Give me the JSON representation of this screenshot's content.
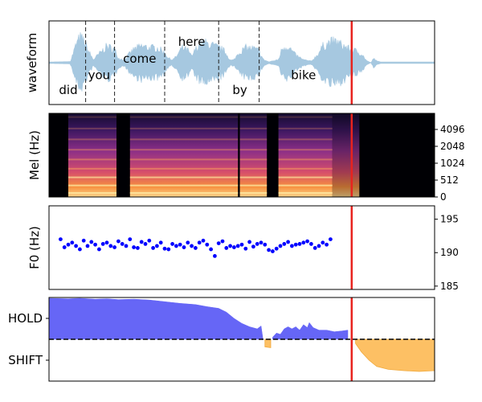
{
  "chart_data": [
    {
      "type": "area",
      "panel": "waveform",
      "ylabel": "waveform",
      "xlim": [
        0,
        10
      ],
      "ylim": [
        -1,
        1
      ],
      "color": "#a6c8e0",
      "envelope": [
        [
          0.0,
          0.02
        ],
        [
          0.55,
          0.03
        ],
        [
          0.7,
          0.6
        ],
        [
          0.8,
          0.85
        ],
        [
          0.9,
          0.75
        ],
        [
          1.0,
          0.45
        ],
        [
          1.15,
          0.1
        ],
        [
          1.3,
          0.3
        ],
        [
          1.5,
          0.55
        ],
        [
          1.7,
          0.45
        ],
        [
          1.8,
          0.15
        ],
        [
          1.95,
          0.1
        ],
        [
          2.05,
          0.25
        ],
        [
          2.2,
          0.45
        ],
        [
          2.4,
          0.55
        ],
        [
          2.6,
          0.5
        ],
        [
          2.8,
          0.5
        ],
        [
          3.0,
          0.35
        ],
        [
          3.1,
          0.15
        ],
        [
          3.2,
          0.1
        ],
        [
          3.3,
          0.2
        ],
        [
          3.45,
          0.5
        ],
        [
          3.6,
          0.42
        ],
        [
          3.7,
          0.2
        ],
        [
          3.8,
          0.45
        ],
        [
          3.9,
          0.6
        ],
        [
          4.0,
          0.68
        ],
        [
          4.2,
          0.6
        ],
        [
          4.4,
          0.5
        ],
        [
          4.5,
          0.45
        ],
        [
          4.6,
          0.3
        ],
        [
          4.7,
          0.08
        ],
        [
          4.8,
          0.1
        ],
        [
          4.9,
          0.3
        ],
        [
          5.1,
          0.5
        ],
        [
          5.3,
          0.48
        ],
        [
          5.45,
          0.4
        ],
        [
          5.55,
          0.12
        ],
        [
          5.7,
          0.02
        ],
        [
          5.95,
          0.1
        ],
        [
          6.05,
          0.5
        ],
        [
          6.2,
          0.55
        ],
        [
          6.4,
          0.25
        ],
        [
          6.6,
          0.1
        ],
        [
          6.8,
          0.05
        ],
        [
          6.95,
          0.25
        ],
        [
          7.1,
          0.55
        ],
        [
          7.3,
          0.7
        ],
        [
          7.45,
          0.7
        ],
        [
          7.6,
          0.6
        ],
        [
          7.8,
          0.45
        ],
        [
          7.95,
          0.4
        ],
        [
          8.1,
          0.3
        ],
        [
          8.25,
          0.05
        ],
        [
          8.35,
          0.0
        ],
        [
          8.42,
          0.15
        ],
        [
          8.5,
          0.05
        ],
        [
          8.6,
          0.02
        ],
        [
          10.0,
          0.02
        ]
      ],
      "words": [
        {
          "text": "did",
          "x": 0.5,
          "y": -0.65
        },
        {
          "text": "you",
          "x": 1.3,
          "y": -0.3
        },
        {
          "text": "come",
          "x": 2.35,
          "y": 0.1
        },
        {
          "text": "here",
          "x": 3.7,
          "y": 0.5
        },
        {
          "text": "by",
          "x": 4.95,
          "y": -0.65
        },
        {
          "text": "bike",
          "x": 6.6,
          "y": -0.3
        }
      ],
      "word_boundaries": [
        0.95,
        1.7,
        3.0,
        4.4,
        5.45
      ],
      "cursor": {
        "x": 7.85,
        "color": "#e8231e"
      }
    },
    {
      "type": "heatmap",
      "panel": "mel-spectrogram",
      "ylabel": "Mel (Hz)",
      "xlim": [
        0,
        10
      ],
      "yticks": [
        "0",
        "512",
        "1024",
        "2048",
        "4096"
      ],
      "cursor": {
        "x": 7.85,
        "color": "#e8231e"
      },
      "silence_start": 8.05,
      "voiced_regions": [
        [
          0.5,
          1.75
        ],
        [
          2.1,
          4.9
        ],
        [
          4.95,
          5.65
        ],
        [
          5.95,
          7.0
        ],
        [
          7.0,
          7.35
        ]
      ]
    },
    {
      "type": "scatter",
      "panel": "f0",
      "ylabel": "F0 (Hz)",
      "xlim": [
        0,
        10
      ],
      "ylim": [
        184.5,
        197
      ],
      "yticks": [
        185,
        190,
        195
      ],
      "color": "#0000ff",
      "x": [
        0.3,
        0.4,
        0.5,
        0.6,
        0.7,
        0.8,
        0.9,
        1.0,
        1.1,
        1.2,
        1.3,
        1.4,
        1.5,
        1.6,
        1.7,
        1.8,
        1.9,
        2.0,
        2.1,
        2.2,
        2.3,
        2.4,
        2.5,
        2.6,
        2.7,
        2.8,
        2.9,
        3.0,
        3.1,
        3.2,
        3.3,
        3.4,
        3.5,
        3.6,
        3.7,
        3.8,
        3.9,
        4.0,
        4.1,
        4.2,
        4.3,
        4.4,
        4.5,
        4.6,
        4.7,
        4.8,
        4.9,
        5.0,
        5.1,
        5.2,
        5.3,
        5.4,
        5.5,
        5.6,
        5.7,
        5.8,
        5.9,
        6.0,
        6.1,
        6.2,
        6.3,
        6.4,
        6.5,
        6.6,
        6.7,
        6.8,
        6.9,
        7.0,
        7.1,
        7.2,
        7.3
      ],
      "y": [
        192.0,
        190.8,
        191.2,
        191.5,
        191.0,
        190.5,
        191.8,
        191.0,
        191.6,
        191.2,
        190.5,
        191.3,
        191.5,
        191.0,
        190.8,
        191.7,
        191.3,
        191.0,
        192.0,
        190.8,
        190.7,
        191.6,
        191.3,
        191.8,
        190.7,
        191.0,
        191.5,
        190.6,
        190.5,
        191.3,
        191.0,
        191.2,
        190.8,
        191.5,
        191.0,
        190.7,
        191.5,
        191.8,
        191.2,
        190.5,
        189.5,
        191.4,
        191.7,
        190.7,
        191.0,
        190.8,
        191.0,
        191.2,
        190.6,
        191.6,
        190.9,
        191.3,
        191.5,
        191.2,
        190.4,
        190.2,
        190.6,
        191.0,
        191.3,
        191.6,
        191.0,
        191.2,
        191.3,
        191.5,
        191.7,
        191.3,
        190.7,
        191.0,
        191.5,
        191.2,
        192.0
      ],
      "cursor": {
        "x": 7.85,
        "color": "#e8231e"
      }
    },
    {
      "type": "area",
      "panel": "turn-taking",
      "yticks": [
        "HOLD",
        "SHIFT"
      ],
      "xlim": [
        0,
        10
      ],
      "ylim": [
        -1,
        1
      ],
      "hold_color": "#6666f6",
      "shift_color": "#fdc064",
      "hold": [
        [
          0.0,
          0.98
        ],
        [
          0.5,
          0.97
        ],
        [
          0.8,
          0.98
        ],
        [
          1.2,
          0.96
        ],
        [
          1.5,
          0.97
        ],
        [
          1.8,
          0.95
        ],
        [
          2.2,
          0.96
        ],
        [
          2.6,
          0.94
        ],
        [
          3.0,
          0.9
        ],
        [
          3.4,
          0.86
        ],
        [
          3.8,
          0.83
        ],
        [
          4.1,
          0.78
        ],
        [
          4.4,
          0.74
        ],
        [
          4.6,
          0.65
        ],
        [
          4.8,
          0.5
        ],
        [
          5.0,
          0.38
        ],
        [
          5.2,
          0.3
        ],
        [
          5.4,
          0.25
        ],
        [
          5.5,
          0.32
        ],
        [
          5.55,
          0.0
        ],
        [
          5.55,
          null
        ],
        [
          5.8,
          null
        ],
        [
          5.8,
          0.05
        ],
        [
          5.9,
          0.15
        ],
        [
          6.0,
          0.12
        ],
        [
          6.1,
          0.25
        ],
        [
          6.2,
          0.3
        ],
        [
          6.3,
          0.25
        ],
        [
          6.4,
          0.3
        ],
        [
          6.5,
          0.22
        ],
        [
          6.6,
          0.35
        ],
        [
          6.7,
          0.28
        ],
        [
          6.75,
          0.4
        ],
        [
          6.85,
          0.28
        ],
        [
          7.0,
          0.22
        ],
        [
          7.2,
          0.22
        ],
        [
          7.4,
          0.18
        ],
        [
          7.6,
          0.2
        ],
        [
          7.75,
          0.22
        ],
        [
          7.75,
          0.0
        ]
      ],
      "shift": [
        [
          5.6,
          0.0
        ],
        [
          5.6,
          -0.18
        ],
        [
          5.75,
          -0.2
        ],
        [
          5.75,
          0.0
        ],
        [
          7.95,
          0.0
        ],
        [
          7.95,
          -0.1
        ],
        [
          8.1,
          -0.3
        ],
        [
          8.3,
          -0.5
        ],
        [
          8.5,
          -0.65
        ],
        [
          8.8,
          -0.72
        ],
        [
          9.2,
          -0.75
        ],
        [
          9.6,
          -0.77
        ],
        [
          10.0,
          -0.75
        ],
        [
          10.0,
          0.0
        ]
      ],
      "baseline": 0,
      "cursor": {
        "x": 7.85,
        "color": "#e8231e"
      }
    }
  ]
}
